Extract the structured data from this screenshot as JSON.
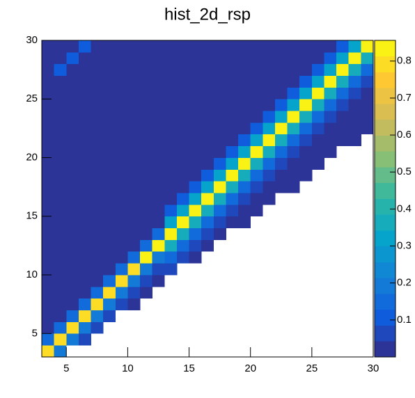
{
  "chart_data": {
    "type": "heatmap",
    "title": "hist_2d_rsp",
    "xbins": [
      3,
      4,
      5,
      6,
      7,
      8,
      9,
      10,
      11,
      12,
      13,
      14,
      15,
      16,
      17,
      18,
      19,
      20,
      21,
      22,
      23,
      24,
      25,
      26,
      27,
      28,
      29,
      30
    ],
    "ybins": [
      3,
      4,
      5,
      6,
      7,
      8,
      9,
      10,
      11,
      12,
      13,
      14,
      15,
      16,
      17,
      18,
      19,
      20,
      21,
      22,
      23,
      24,
      25,
      26,
      27,
      28,
      29,
      30
    ],
    "xlim": [
      3,
      30
    ],
    "ylim": [
      3,
      30
    ],
    "xticks": [
      5,
      10,
      15,
      20,
      25,
      30
    ],
    "yticks": [
      5,
      10,
      15,
      20,
      25,
      30
    ],
    "zlim": [
      0,
      0.856
    ],
    "zticks": [
      0.1,
      0.2,
      0.3,
      0.4,
      0.5,
      0.6,
      0.7,
      0.8
    ],
    "contours": 20,
    "palette": [
      "#352a87",
      "#0f5cdd",
      "#1481d6",
      "#06a4ca",
      "#2eb7a4",
      "#87bf77",
      "#d1bb59",
      "#fec832",
      "#f9fb0e"
    ],
    "z": [
      [
        0.78,
        0.2,
        null,
        null,
        null,
        null,
        null,
        null,
        null,
        null,
        null,
        null,
        null,
        null,
        null,
        null,
        null,
        null,
        null,
        null,
        null,
        null,
        null,
        null,
        null,
        null,
        null
      ],
      [
        0.15,
        0.78,
        0.2,
        0.06,
        null,
        null,
        null,
        null,
        null,
        null,
        null,
        null,
        null,
        null,
        null,
        null,
        null,
        null,
        null,
        null,
        null,
        null,
        null,
        null,
        null,
        null,
        null
      ],
      [
        0.04,
        0.15,
        0.78,
        0.2,
        0.06,
        null,
        null,
        null,
        null,
        null,
        null,
        null,
        null,
        null,
        null,
        null,
        null,
        null,
        null,
        null,
        null,
        null,
        null,
        null,
        null,
        null,
        null
      ],
      [
        0.02,
        0.04,
        0.15,
        0.78,
        0.2,
        0.06,
        null,
        null,
        null,
        null,
        null,
        null,
        null,
        null,
        null,
        null,
        null,
        null,
        null,
        null,
        null,
        null,
        null,
        null,
        null,
        null,
        null
      ],
      [
        0.01,
        0.02,
        0.04,
        0.15,
        0.78,
        0.2,
        0.06,
        0.03,
        null,
        null,
        null,
        null,
        null,
        null,
        null,
        null,
        null,
        null,
        null,
        null,
        null,
        null,
        null,
        null,
        null,
        null,
        null
      ],
      [
        0.01,
        0.01,
        0.02,
        0.04,
        0.15,
        0.78,
        0.2,
        0.06,
        0.03,
        null,
        null,
        null,
        null,
        null,
        null,
        null,
        null,
        null,
        null,
        null,
        null,
        null,
        null,
        null,
        null,
        null,
        null
      ],
      [
        0.01,
        0.01,
        0.01,
        0.02,
        0.04,
        0.15,
        0.78,
        0.2,
        0.06,
        0.03,
        null,
        null,
        null,
        null,
        null,
        null,
        null,
        null,
        null,
        null,
        null,
        null,
        null,
        null,
        null,
        null,
        null
      ],
      [
        0.01,
        0.01,
        0.01,
        0.01,
        0.02,
        0.04,
        0.15,
        0.78,
        0.2,
        0.06,
        0.07,
        null,
        null,
        null,
        null,
        null,
        null,
        null,
        null,
        null,
        null,
        null,
        null,
        null,
        null,
        null,
        null
      ],
      [
        0.01,
        0.01,
        0.01,
        0.01,
        0.01,
        0.02,
        0.04,
        0.15,
        0.82,
        0.2,
        0.15,
        0.07,
        0.02,
        null,
        null,
        null,
        null,
        null,
        null,
        null,
        null,
        null,
        null,
        null,
        null,
        null,
        null
      ],
      [
        0.01,
        0.01,
        0.01,
        0.01,
        0.01,
        0.01,
        0.02,
        0.04,
        0.15,
        0.82,
        0.35,
        0.15,
        0.07,
        0.02,
        null,
        null,
        null,
        null,
        null,
        null,
        null,
        null,
        null,
        null,
        null,
        null,
        null
      ],
      [
        0.01,
        0.01,
        0.01,
        0.01,
        0.01,
        0.01,
        0.01,
        0.02,
        0.04,
        0.15,
        0.82,
        0.35,
        0.15,
        0.07,
        0.02,
        null,
        null,
        null,
        null,
        null,
        null,
        null,
        null,
        null,
        null,
        null,
        null
      ],
      [
        0.01,
        0.01,
        0.01,
        0.01,
        0.01,
        0.01,
        0.01,
        0.01,
        0.02,
        0.04,
        0.3,
        0.82,
        0.35,
        0.15,
        0.07,
        0.02,
        0.02,
        null,
        null,
        null,
        null,
        null,
        null,
        null,
        null,
        null,
        null
      ],
      [
        0.01,
        0.01,
        0.01,
        0.01,
        0.01,
        0.01,
        0.01,
        0.01,
        0.01,
        0.02,
        0.1,
        0.3,
        0.82,
        0.35,
        0.15,
        0.07,
        0.02,
        0.02,
        null,
        null,
        null,
        null,
        null,
        null,
        null,
        null,
        null
      ],
      [
        0.01,
        0.01,
        0.01,
        0.01,
        0.01,
        0.01,
        0.01,
        0.01,
        0.01,
        0.01,
        0.04,
        0.1,
        0.3,
        0.82,
        0.35,
        0.15,
        0.07,
        0.02,
        0.02,
        null,
        null,
        null,
        null,
        null,
        null,
        null,
        null
      ],
      [
        0.01,
        0.01,
        0.01,
        0.01,
        0.01,
        0.01,
        0.01,
        0.01,
        0.01,
        0.01,
        0.01,
        0.04,
        0.1,
        0.3,
        0.82,
        0.35,
        0.15,
        0.07,
        0.02,
        0.02,
        0.02,
        null,
        null,
        null,
        null,
        null,
        null
      ],
      [
        0.01,
        0.01,
        0.01,
        0.01,
        0.01,
        0.01,
        0.01,
        0.01,
        0.01,
        0.01,
        0.01,
        0.01,
        0.04,
        0.1,
        0.3,
        0.82,
        0.35,
        0.15,
        0.07,
        0.02,
        0.02,
        0.02,
        null,
        null,
        null,
        null,
        null
      ],
      [
        0.01,
        0.01,
        0.01,
        0.01,
        0.01,
        0.01,
        0.01,
        0.01,
        0.01,
        0.01,
        0.01,
        0.01,
        0.01,
        0.04,
        0.1,
        0.3,
        0.82,
        0.35,
        0.15,
        0.07,
        0.02,
        0.02,
        0.02,
        null,
        null,
        null,
        null
      ],
      [
        0.01,
        0.01,
        0.01,
        0.01,
        0.01,
        0.01,
        0.01,
        0.01,
        0.01,
        0.01,
        0.01,
        0.01,
        0.01,
        0.01,
        0.04,
        0.1,
        0.3,
        0.82,
        0.35,
        0.15,
        0.07,
        0.02,
        0.02,
        0.02,
        null,
        null,
        null
      ],
      [
        0.01,
        0.01,
        0.01,
        0.01,
        0.01,
        0.01,
        0.01,
        0.01,
        0.01,
        0.01,
        0.01,
        0.01,
        0.01,
        0.01,
        0.01,
        0.04,
        0.1,
        0.3,
        0.82,
        0.35,
        0.15,
        0.07,
        0.02,
        0.02,
        0.02,
        0.02,
        null
      ],
      [
        0.01,
        0.01,
        0.01,
        0.01,
        0.01,
        0.01,
        0.01,
        0.01,
        0.01,
        0.01,
        0.01,
        0.01,
        0.01,
        0.01,
        0.01,
        0.01,
        0.04,
        0.1,
        0.3,
        0.82,
        0.35,
        0.15,
        0.07,
        0.02,
        0.02,
        0.02,
        0.02
      ],
      [
        0.01,
        0.01,
        0.01,
        0.01,
        0.01,
        0.01,
        0.01,
        0.01,
        0.01,
        0.01,
        0.01,
        0.01,
        0.01,
        0.01,
        0.01,
        0.01,
        0.01,
        0.04,
        0.1,
        0.3,
        0.84,
        0.35,
        0.15,
        0.07,
        0.02,
        0.02,
        0.02
      ],
      [
        0.01,
        0.01,
        0.01,
        0.01,
        0.01,
        0.01,
        0.01,
        0.01,
        0.01,
        0.01,
        0.01,
        0.01,
        0.01,
        0.01,
        0.01,
        0.01,
        0.01,
        0.01,
        0.04,
        0.1,
        0.3,
        0.84,
        0.35,
        0.15,
        0.07,
        0.02,
        0.02
      ],
      [
        0.01,
        0.01,
        0.01,
        0.01,
        0.01,
        0.01,
        0.01,
        0.01,
        0.01,
        0.01,
        0.01,
        0.01,
        0.01,
        0.01,
        0.01,
        0.01,
        0.01,
        0.01,
        0.01,
        0.04,
        0.1,
        0.3,
        0.84,
        0.35,
        0.15,
        0.07,
        0.02
      ],
      [
        0.01,
        0.01,
        0.01,
        0.01,
        0.01,
        0.01,
        0.01,
        0.01,
        0.01,
        0.01,
        0.01,
        0.01,
        0.01,
        0.01,
        0.01,
        0.01,
        0.01,
        0.01,
        0.01,
        0.01,
        0.04,
        0.1,
        0.3,
        0.84,
        0.35,
        0.15,
        0.07
      ],
      [
        0.01,
        0.1,
        0.01,
        0.01,
        0.01,
        0.01,
        0.01,
        0.01,
        0.01,
        0.01,
        0.01,
        0.01,
        0.01,
        0.01,
        0.01,
        0.01,
        0.01,
        0.01,
        0.01,
        0.01,
        0.01,
        0.04,
        0.1,
        0.3,
        0.84,
        0.35,
        0.15
      ],
      [
        0.01,
        0.01,
        0.1,
        0.01,
        0.01,
        0.01,
        0.01,
        0.01,
        0.01,
        0.01,
        0.01,
        0.01,
        0.01,
        0.01,
        0.01,
        0.01,
        0.01,
        0.01,
        0.01,
        0.01,
        0.01,
        0.01,
        0.04,
        0.1,
        0.3,
        0.84,
        0.35
      ],
      [
        0.01,
        0.01,
        0.01,
        0.1,
        0.01,
        0.01,
        0.01,
        0.01,
        0.01,
        0.01,
        0.01,
        0.01,
        0.01,
        0.01,
        0.01,
        0.01,
        0.01,
        0.01,
        0.01,
        0.01,
        0.01,
        0.01,
        0.01,
        0.04,
        0.1,
        0.3,
        0.84
      ]
    ]
  }
}
